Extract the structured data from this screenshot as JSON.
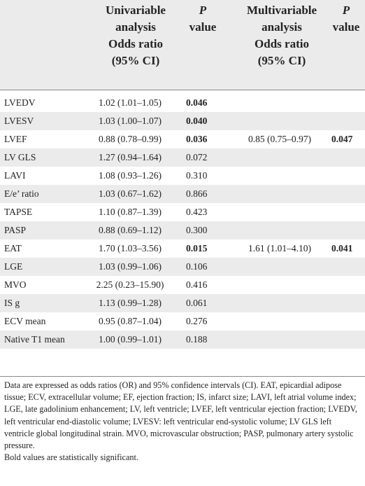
{
  "header": {
    "univariable": [
      "Univariable",
      "analysis",
      "Odds ratio",
      "(95% CI)"
    ],
    "p1": [
      "P",
      "value"
    ],
    "multivariable": [
      "Multivariable",
      "analysis",
      "Odds ratio",
      "(95% CI)"
    ],
    "p2": [
      "P",
      "value"
    ]
  },
  "rows": [
    {
      "variable": "LVEDV",
      "uni_or": "1.02 (1.01–1.05)",
      "uni_p": "0.046",
      "multi_or": "",
      "multi_p": ""
    },
    {
      "variable": "LVESV",
      "uni_or": "1.03 (1.00–1.07)",
      "uni_p": "0.040",
      "multi_or": "",
      "multi_p": ""
    },
    {
      "variable": "LVEF",
      "uni_or": "0.88 (0.78–0.99)",
      "uni_p": "0.036",
      "multi_or": "0.85 (0.75–0.97)",
      "multi_p": "0.047"
    },
    {
      "variable": "LV GLS",
      "uni_or": "1.27 (0.94–1.64)",
      "uni_p": "0.072",
      "multi_or": "",
      "multi_p": ""
    },
    {
      "variable": "LAVI",
      "uni_or": "1.08 (0.93–1.26)",
      "uni_p": "0.310",
      "multi_or": "",
      "multi_p": ""
    },
    {
      "variable": "E/e’ ratio",
      "uni_or": "1.03 (0.67–1.62)",
      "uni_p": "0.866",
      "multi_or": "",
      "multi_p": ""
    },
    {
      "variable": "TAPSE",
      "uni_or": "1.10 (0.87–1.39)",
      "uni_p": "0.423",
      "multi_or": "",
      "multi_p": ""
    },
    {
      "variable": "PASP",
      "uni_or": "0.88 (0.69–1.12)",
      "uni_p": "0.300",
      "multi_or": "",
      "multi_p": ""
    },
    {
      "variable": "EAT",
      "uni_or": "1.70 (1.03–3.56)",
      "uni_p": "0.015",
      "multi_or": "1.61 (1.01–4.10)",
      "multi_p": "0.041"
    },
    {
      "variable": "LGE",
      "uni_or": "1.03 (0.99–1.06)",
      "uni_p": "0.106",
      "multi_or": "",
      "multi_p": ""
    },
    {
      "variable": "MVO",
      "uni_or": "2.25 (0.23–15.90)",
      "uni_p": "0.416",
      "multi_or": "",
      "multi_p": ""
    },
    {
      "variable": "IS g",
      "uni_or": "1.13 (0.99–1.28)",
      "uni_p": "0.061",
      "multi_or": "",
      "multi_p": ""
    },
    {
      "variable": "ECV mean",
      "uni_or": "0.95 (0.87–1.04)",
      "uni_p": "0.276",
      "multi_or": "",
      "multi_p": ""
    },
    {
      "variable": "Native T1 mean",
      "uni_or": "1.00 (0.99–1.01)",
      "uni_p": "0.188",
      "multi_or": "",
      "multi_p": ""
    }
  ],
  "footnote": {
    "text": "Data are expressed as odds ratios (OR) and 95% confidence intervals (CI). EAT, epicardial adipose tissue; ECV, extracellular volume; EF, ejection fraction; IS, infarct size; LAVI, left atrial volume index; LGE, late gadolinium enhancement; LV, left ventricle; LVEF, left ventricular ejection fraction; LVEDV, left ventricular end-diastolic volume; LVESV: left ventricular end-systolic volume; LV GLS left ventricle global longitudinal strain. MVO, microvascular obstruction; PASP, pulmonary artery systolic pressure.",
    "bold_note": "Bold values are statistically significant."
  }
}
